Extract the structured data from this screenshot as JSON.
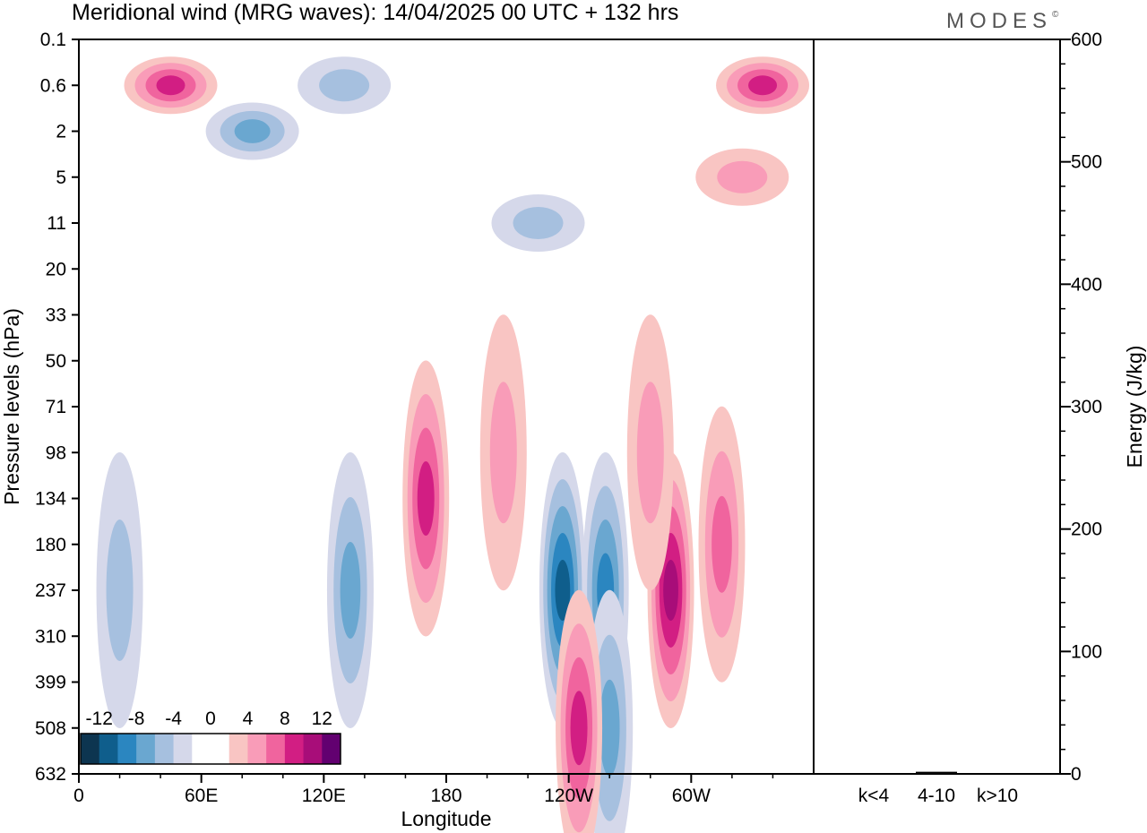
{
  "header": {
    "title": "Meridional wind (MRG waves):  14/04/2025  00 UTC  + 132 hrs",
    "brand": "MODES",
    "brand_mark": "©"
  },
  "chart_data": [
    {
      "type": "heatmap",
      "xlabel": "Longitude",
      "ylabel": "Pressure levels (hPa)",
      "x_ticks": [
        "0",
        "60E",
        "120E",
        "180",
        "120W",
        "60W"
      ],
      "y_ticks": [
        "0.1",
        "0.6",
        "2",
        "5",
        "11",
        "20",
        "33",
        "50",
        "71",
        "98",
        "134",
        "180",
        "237",
        "310",
        "399",
        "508",
        "632"
      ],
      "colorbar": {
        "labels": [
          "-12",
          "-8",
          "-4",
          "0",
          "4",
          "8",
          "12"
        ],
        "colors": [
          "#0d3550",
          "#0f5e8c",
          "#2b86c0",
          "#6aa7d0",
          "#a6c0df",
          "#d5d8ea",
          "#ffffff",
          "#ffffff",
          "#f9c5c3",
          "#f99cb8",
          "#f0649e",
          "#d21e83",
          "#a80d79",
          "#620070"
        ]
      },
      "fields": [
        {
          "lon": 170,
          "level": 10,
          "sign": 1,
          "amp": 9
        },
        {
          "lon": 208,
          "level": 9,
          "sign": 1,
          "amp": 4
        },
        {
          "lon": 237,
          "level": 12,
          "sign": -1,
          "amp": 10
        },
        {
          "lon": 258,
          "level": 12,
          "sign": -1,
          "amp": 9
        },
        {
          "lon": 260,
          "level": 15,
          "sign": -1,
          "amp": 7
        },
        {
          "lon": 245,
          "level": 15,
          "sign": 1,
          "amp": 8
        },
        {
          "lon": 290,
          "level": 12,
          "sign": 1,
          "amp": 11
        },
        {
          "lon": 280,
          "level": 9,
          "sign": 1,
          "amp": 5
        },
        {
          "lon": 315,
          "level": 11,
          "sign": 1,
          "amp": 7
        },
        {
          "lon": 133,
          "level": 12,
          "sign": -1,
          "amp": 6
        },
        {
          "lon": 20,
          "level": 12,
          "sign": -1,
          "amp": 5
        },
        {
          "lon": 45,
          "level": 1,
          "sign": 1,
          "amp": 9
        },
        {
          "lon": 335,
          "level": 1,
          "sign": 1,
          "amp": 9
        },
        {
          "lon": 85,
          "level": 2,
          "sign": -1,
          "amp": 7
        },
        {
          "lon": 130,
          "level": 1,
          "sign": -1,
          "amp": 5
        },
        {
          "lon": 325,
          "level": 3,
          "sign": 1,
          "amp": 4
        },
        {
          "lon": 225,
          "level": 4,
          "sign": -1,
          "amp": 4
        }
      ]
    },
    {
      "type": "bar",
      "categories": [
        "k<4",
        "4-10",
        "k>10"
      ],
      "values": [
        0,
        1,
        0
      ],
      "ylabel": "Energy (J/kg)",
      "ylim": [
        0,
        600
      ],
      "y_ticks": [
        0,
        100,
        200,
        300,
        400,
        500,
        600
      ]
    }
  ]
}
